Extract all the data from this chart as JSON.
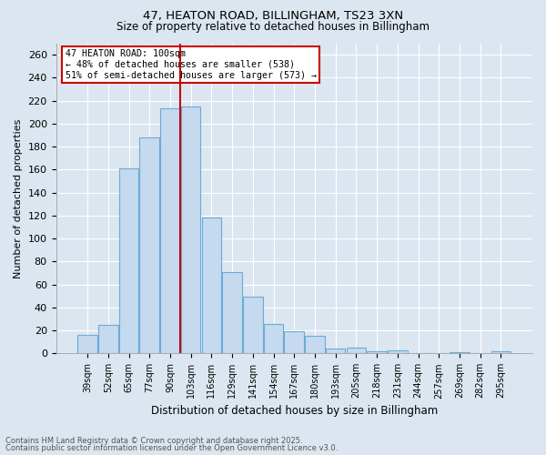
{
  "title_line1": "47, HEATON ROAD, BILLINGHAM, TS23 3XN",
  "title_line2": "Size of property relative to detached houses in Billingham",
  "xlabel": "Distribution of detached houses by size in Billingham",
  "ylabel": "Number of detached properties",
  "categories": [
    "39sqm",
    "52sqm",
    "65sqm",
    "77sqm",
    "90sqm",
    "103sqm",
    "116sqm",
    "129sqm",
    "141sqm",
    "154sqm",
    "167sqm",
    "180sqm",
    "193sqm",
    "205sqm",
    "218sqm",
    "231sqm",
    "244sqm",
    "257sqm",
    "269sqm",
    "282sqm",
    "295sqm"
  ],
  "values": [
    16,
    25,
    161,
    188,
    213,
    215,
    118,
    71,
    49,
    26,
    19,
    15,
    4,
    5,
    2,
    3,
    0,
    0,
    1,
    0,
    2
  ],
  "bar_color": "#c5d9ef",
  "bar_edge_color": "#6aacd6",
  "vline_color": "#cc0000",
  "vline_pos": 4.5,
  "annotation_text": "47 HEATON ROAD: 100sqm\n← 48% of detached houses are smaller (538)\n51% of semi-detached houses are larger (573) →",
  "annotation_box_facecolor": "#ffffff",
  "annotation_box_edgecolor": "#cc0000",
  "ylim": [
    0,
    270
  ],
  "yticks": [
    0,
    20,
    40,
    60,
    80,
    100,
    120,
    140,
    160,
    180,
    200,
    220,
    240,
    260
  ],
  "footnote_line1": "Contains HM Land Registry data © Crown copyright and database right 2025.",
  "footnote_line2": "Contains public sector information licensed under the Open Government Licence v3.0.",
  "bg_color": "#dce6f0",
  "grid_color": "#ffffff"
}
